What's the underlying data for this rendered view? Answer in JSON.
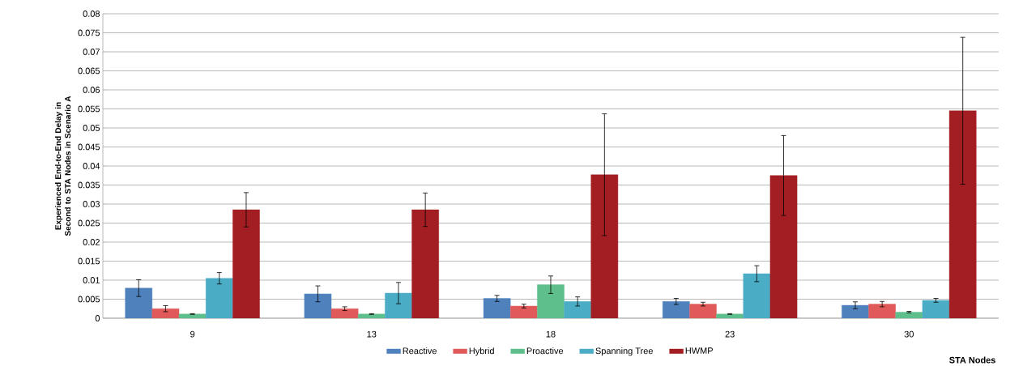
{
  "chart_data": {
    "type": "bar",
    "xlabel": "STA Nodes",
    "ylabel": "Experienced End-to-End Delay in Second to STA Nodes in Scenario A",
    "categories": [
      "9",
      "13",
      "18",
      "23",
      "30"
    ],
    "series": [
      {
        "name": "Reactive",
        "color": "#4f81bd",
        "values": [
          0.0079,
          0.0064,
          0.0052,
          0.0044,
          0.0034
        ],
        "errors": [
          0.0022,
          0.0021,
          0.0008,
          0.0008,
          0.0009
        ]
      },
      {
        "name": "Hybrid",
        "color": "#e05a5a",
        "values": [
          0.0025,
          0.0025,
          0.0032,
          0.0037,
          0.0037
        ],
        "errors": [
          0.0008,
          0.0005,
          0.0005,
          0.0005,
          0.0007
        ]
      },
      {
        "name": "Proactive",
        "color": "#5fbf8c",
        "values": [
          0.0011,
          0.0011,
          0.0088,
          0.0011,
          0.0016
        ],
        "errors": [
          0.0001,
          0.0001,
          0.0023,
          0.0001,
          0.0002
        ]
      },
      {
        "name": "Spanning Tree",
        "color": "#4bacc6",
        "values": [
          0.0105,
          0.0066,
          0.0044,
          0.0117,
          0.0047
        ],
        "errors": [
          0.0015,
          0.0028,
          0.0012,
          0.0021,
          0.0005
        ]
      },
      {
        "name": "HWMP",
        "color": "#a31e22",
        "values": [
          0.0285,
          0.0285,
          0.0377,
          0.0375,
          0.0545
        ],
        "errors": [
          0.0045,
          0.0044,
          0.016,
          0.0105,
          0.0193
        ]
      }
    ],
    "ylim": [
      0,
      0.08
    ],
    "yticks": [
      0,
      0.005,
      0.01,
      0.015,
      0.02,
      0.025,
      0.03,
      0.035,
      0.04,
      0.045,
      0.05,
      0.055,
      0.06,
      0.065,
      0.07,
      0.075,
      0.08
    ],
    "grid": "y",
    "legend": "bottom"
  }
}
